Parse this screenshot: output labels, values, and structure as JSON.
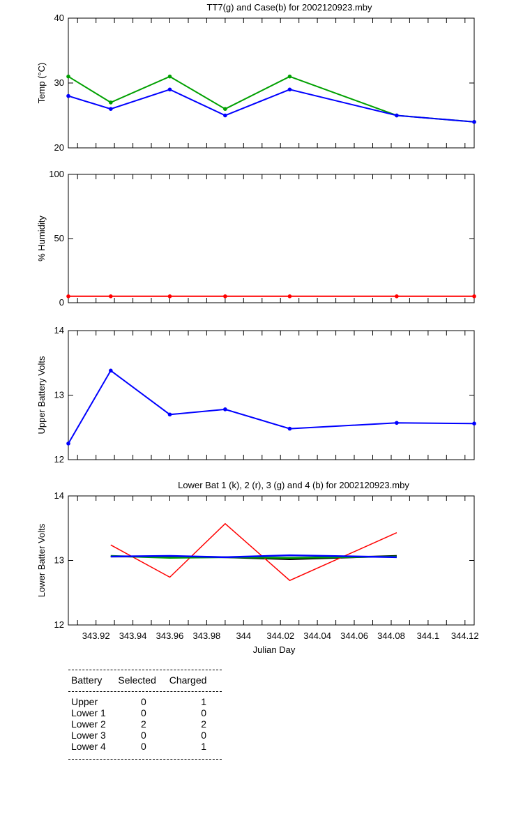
{
  "chart_data": [
    {
      "type": "line",
      "title": "TT7(g) and Case(b) for 2002120923.mby",
      "xlabel": "",
      "ylabel": "Temp  (°C)",
      "xlim": [
        343.905,
        344.125
      ],
      "ylim": [
        20,
        40
      ],
      "yticks": [
        "20",
        "30",
        "40"
      ],
      "x": [
        343.905,
        343.928,
        343.96,
        343.99,
        344.025,
        344.083,
        344.125
      ],
      "series": [
        {
          "color": "#00a000",
          "values": [
            31,
            27,
            31,
            26,
            31,
            25,
            24
          ]
        },
        {
          "color": "#0000ff",
          "values": [
            28,
            26,
            29,
            25,
            29,
            25,
            24
          ]
        }
      ]
    },
    {
      "type": "line",
      "title": "",
      "xlabel": "",
      "ylabel": "% Humidity",
      "xlim": [
        343.905,
        344.125
      ],
      "ylim": [
        0,
        100
      ],
      "yticks": [
        "0",
        "50",
        "100"
      ],
      "x": [
        343.905,
        343.928,
        343.96,
        343.99,
        344.025,
        344.083,
        344.125
      ],
      "series": [
        {
          "color": "#ff0000",
          "values": [
            5,
            5,
            5,
            5,
            5,
            5,
            5
          ]
        }
      ]
    },
    {
      "type": "line",
      "title": "",
      "xlabel": "",
      "ylabel": "Upper Battery Volts",
      "xlim": [
        343.905,
        344.125
      ],
      "ylim": [
        12,
        14
      ],
      "yticks": [
        "12",
        "13",
        "14"
      ],
      "x": [
        343.905,
        343.928,
        343.96,
        343.99,
        344.025,
        344.083,
        344.125
      ],
      "series": [
        {
          "color": "#0000ff",
          "values": [
            12.25,
            13.38,
            12.7,
            12.78,
            12.48,
            12.57,
            12.56
          ]
        }
      ]
    },
    {
      "type": "line",
      "title": "Lower Bat 1 (k), 2 (r), 3 (g) and 4 (b) for 2002120923.mby",
      "xlabel": "Julian Day",
      "ylabel": "Lower Batter Volts",
      "xlim": [
        343.905,
        344.125
      ],
      "ylim": [
        12,
        14
      ],
      "yticks": [
        "12",
        "13",
        "14"
      ],
      "xticks": [
        "343.92",
        "343.94",
        "343.96",
        "343.98",
        "344",
        "344.02",
        "344.04",
        "344.06",
        "344.08",
        "344.1",
        "344.12"
      ],
      "x": [
        343.928,
        343.96,
        343.99,
        344.025,
        344.083
      ],
      "series": [
        {
          "color": "#000000",
          "values": [
            13.06,
            13.06,
            13.05,
            13.02,
            13.07
          ]
        },
        {
          "color": "#ff0000",
          "values": [
            13.24,
            12.74,
            13.57,
            12.69,
            13.43
          ]
        },
        {
          "color": "#00a000",
          "values": [
            13.07,
            13.04,
            13.05,
            13.04,
            13.06
          ]
        },
        {
          "color": "#0000ff",
          "values": [
            13.06,
            13.07,
            13.05,
            13.08,
            13.05
          ]
        }
      ]
    }
  ],
  "table": {
    "headers": [
      "Battery",
      "Selected",
      "Charged"
    ],
    "rows": [
      [
        "Upper",
        "0",
        "1"
      ],
      [
        "Lower 1",
        "0",
        "0"
      ],
      [
        "Lower 2",
        "2",
        "2"
      ],
      [
        "Lower 3",
        "0",
        "0"
      ],
      [
        "Lower 4",
        "0",
        "1"
      ]
    ]
  }
}
